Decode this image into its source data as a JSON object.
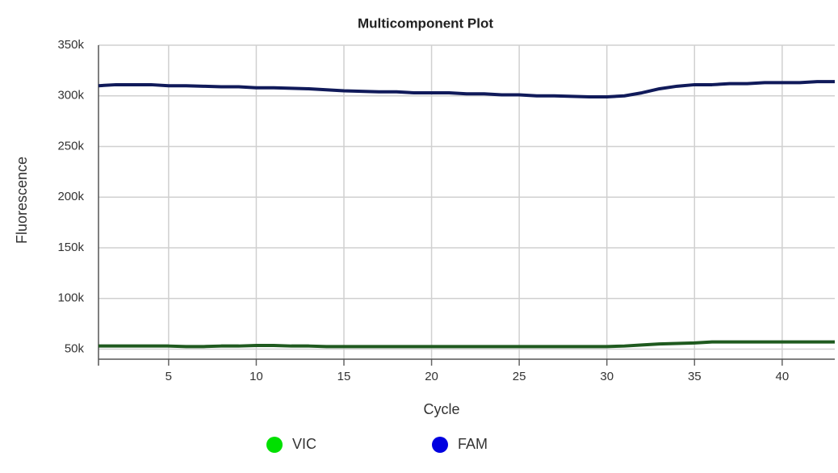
{
  "chart_data": {
    "type": "line",
    "title": "Multicomponent Plot",
    "x_label": "Cycle",
    "y_label": "Fluorescence",
    "x": [
      1,
      2,
      3,
      4,
      5,
      6,
      7,
      8,
      9,
      10,
      11,
      12,
      13,
      14,
      15,
      16,
      17,
      18,
      19,
      20,
      21,
      22,
      23,
      24,
      25,
      26,
      27,
      28,
      29,
      30,
      31,
      32,
      33,
      34,
      35,
      36,
      37,
      38,
      39,
      40,
      41,
      42,
      43
    ],
    "series": [
      {
        "name": "VIC",
        "color": "#00e000",
        "line_color": "#1f5a1f",
        "values": [
          53000,
          53000,
          53000,
          53000,
          53000,
          52500,
          52500,
          53000,
          53000,
          53500,
          53500,
          53000,
          53000,
          52500,
          52500,
          52500,
          52500,
          52500,
          52500,
          52500,
          52500,
          52500,
          52500,
          52500,
          52500,
          52500,
          52500,
          52500,
          52500,
          52500,
          53000,
          54000,
          55000,
          55500,
          56000,
          57000,
          57000,
          57000,
          57000,
          57000,
          57000,
          57000,
          57000
        ]
      },
      {
        "name": "FAM",
        "color": "#0000e0",
        "line_color": "#101a5a",
        "values": [
          310000,
          311000,
          311000,
          311000,
          310000,
          310000,
          309500,
          309000,
          309000,
          308000,
          308000,
          307500,
          307000,
          306000,
          305000,
          304500,
          304000,
          304000,
          303000,
          303000,
          303000,
          302000,
          302000,
          301000,
          301000,
          300000,
          300000,
          299500,
          299000,
          299000,
          300000,
          303000,
          307000,
          309500,
          311000,
          311000,
          312000,
          312000,
          313000,
          313000,
          313000,
          314000,
          314000
        ]
      }
    ],
    "xlim": [
      1,
      43
    ],
    "xticks": [
      5,
      10,
      15,
      20,
      25,
      30,
      35,
      40
    ],
    "ylim": [
      40000,
      350000
    ],
    "yticks": [
      {
        "value": 50000,
        "label": "50k"
      },
      {
        "value": 100000,
        "label": "100k"
      },
      {
        "value": 150000,
        "label": "150k"
      },
      {
        "value": 200000,
        "label": "200k"
      },
      {
        "value": 250000,
        "label": "250k"
      },
      {
        "value": 300000,
        "label": "300k"
      },
      {
        "value": 350000,
        "label": "350k"
      }
    ],
    "grid": true,
    "legend": "bottom"
  }
}
